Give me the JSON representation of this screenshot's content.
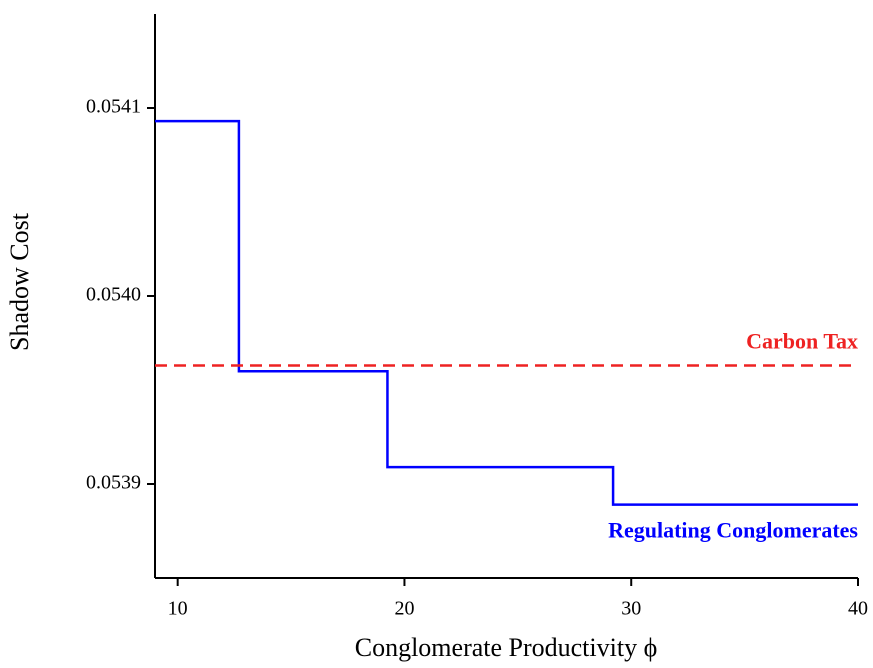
{
  "chart_data": {
    "type": "line",
    "x_label": "Conglomerate Productivity ϕ",
    "y_label": "Shadow Cost",
    "xlim": [
      9,
      40
    ],
    "xticks": [
      10,
      20,
      30,
      40
    ],
    "ylim": [
      0.05385,
      0.05415
    ],
    "yticks": [
      {
        "value": 0.0539,
        "label": "0.0539"
      },
      {
        "value": 0.054,
        "label": "0.0540"
      },
      {
        "value": 0.0541,
        "label": "0.0541"
      }
    ],
    "series": [
      {
        "name": "Regulating Conglomerates",
        "color": "#0000ff",
        "dash": false,
        "x": [
          9,
          12.7,
          12.7,
          19.25,
          19.25,
          29.2,
          29.2,
          40
        ],
        "values": [
          0.054093,
          0.054093,
          0.05396,
          0.05396,
          0.053909,
          0.053909,
          0.053889,
          0.053889
        ]
      },
      {
        "name": "Carbon Tax",
        "color": "#ee2222",
        "dash": true,
        "x": [
          9,
          40
        ],
        "values": [
          0.053963,
          0.053963
        ]
      }
    ]
  }
}
